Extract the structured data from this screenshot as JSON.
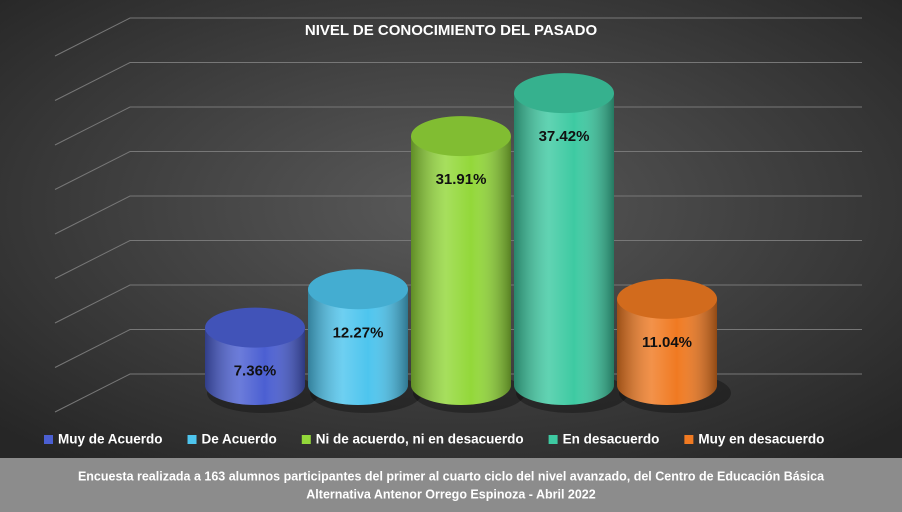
{
  "chart_data": {
    "type": "cylinder",
    "title": "NIVEL DE CONOCIMIENTO DEL PASADO",
    "categories": [
      "Muy de Acuerdo",
      "De Acuerdo",
      "Ni de acuerdo, ni en desacuerdo",
      "En desacuerdo",
      "Muy en desacuerdo"
    ],
    "values": [
      7.36,
      12.27,
      31.91,
      37.42,
      11.04
    ],
    "value_labels": [
      "7.36%",
      "12.27%",
      "31.91%",
      "37.42%",
      "11.04%"
    ],
    "colors": [
      "#4b5fd2",
      "#4ec5ee",
      "#93d83a",
      "#3ecaa2",
      "#f07a22"
    ],
    "ylim": [
      0,
      40
    ],
    "grid": true,
    "legend": "bottom",
    "footnote": [
      "Encuesta realizada a 163 alumnos participantes del primer al cuarto ciclo del nivel avanzado, del Centro de Educación Básica",
      "Alternativa Antenor Orrego Espinoza - Abril 2022"
    ]
  }
}
